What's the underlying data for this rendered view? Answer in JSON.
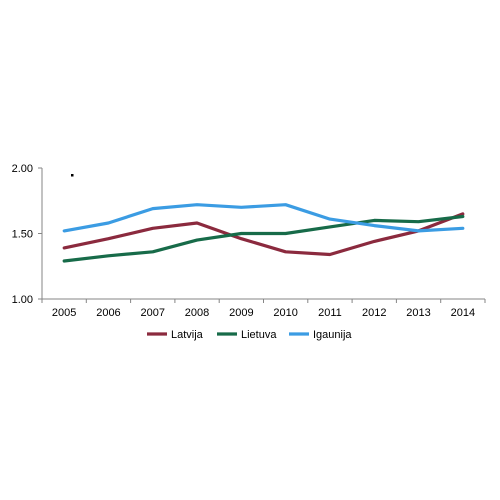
{
  "chart_data": {
    "type": "line",
    "categories": [
      "2005",
      "2006",
      "2007",
      "2008",
      "2009",
      "2010",
      "2011",
      "2012",
      "2013",
      "2014"
    ],
    "ylim": [
      1.0,
      2.0
    ],
    "yticks": [
      "1.00",
      "1.50",
      "2.00"
    ],
    "grid": false,
    "legend_position": "bottom",
    "series": [
      {
        "name": "Latvija",
        "color": "#8b2a3e",
        "values": [
          1.39,
          1.46,
          1.54,
          1.58,
          1.46,
          1.36,
          1.34,
          1.44,
          1.52,
          1.65
        ]
      },
      {
        "name": "Lietuva",
        "color": "#176b49",
        "values": [
          1.29,
          1.33,
          1.36,
          1.45,
          1.5,
          1.5,
          1.55,
          1.6,
          1.59,
          1.63
        ]
      },
      {
        "name": "Igaunija",
        "color": "#3b9ce3",
        "values": [
          1.52,
          1.58,
          1.69,
          1.72,
          1.7,
          1.72,
          1.61,
          1.56,
          1.52,
          1.54
        ]
      }
    ]
  }
}
